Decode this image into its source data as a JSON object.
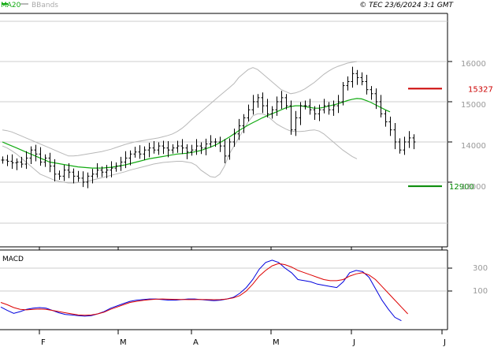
{
  "header": {
    "indicator_ma": "MA20",
    "indicator_bb": "BBands",
    "copyright": "© TEC 23/6/2024 3:1 GMT"
  },
  "macd_label": "MACD",
  "price_axis": [
    "16000",
    "15000",
    "14000",
    "13000"
  ],
  "macd_axis": [
    "300",
    "100"
  ],
  "months": [
    "F",
    "M",
    "A",
    "M",
    "J",
    "J"
  ],
  "levels": {
    "resistance": {
      "label": "15327",
      "value": 15327,
      "color": "#cc0000"
    },
    "support": {
      "label": "12900",
      "value": 12900,
      "color": "#008800"
    }
  },
  "colors": {
    "price_bar": "#000000",
    "ma20": "#11aa11",
    "bbands": "#b8b8b8",
    "macd": "#0000dd",
    "signal": "#dd0000",
    "grid": "#cccccc",
    "frame": "#000000"
  },
  "chart_data": [
    {
      "type": "ohlc",
      "x_ticks": [
        "F",
        "M",
        "A",
        "M",
        "J",
        "J"
      ],
      "ylim": [
        12000,
        16600
      ],
      "y_ticks": [
        13000,
        14000,
        15000,
        16000
      ],
      "grid": true,
      "closes": [
        13550,
        13520,
        13480,
        13500,
        13450,
        13600,
        13800,
        13700,
        13500,
        13600,
        13400,
        13200,
        13150,
        13300,
        13250,
        13150,
        13100,
        13000,
        13150,
        13200,
        13300,
        13250,
        13300,
        13350,
        13400,
        13500,
        13600,
        13700,
        13750,
        13700,
        13800,
        13850,
        13800,
        13900,
        13850,
        13800,
        13850,
        13900,
        13850,
        13750,
        13800,
        13900,
        13850,
        13950,
        14000,
        14000,
        13900,
        13650,
        14000,
        14200,
        14400,
        14600,
        14800,
        15000,
        15100,
        14900,
        14700,
        14800,
        15000,
        15100,
        14900,
        14300,
        14600,
        14900,
        14900,
        14800,
        14700,
        14800,
        14900,
        14800,
        14900,
        15000,
        15400,
        15500,
        15700,
        15600,
        15500,
        15300,
        15200,
        15000,
        14700,
        14500,
        14300,
        14000,
        13800,
        14000,
        14100,
        14000
      ],
      "series": [
        {
          "name": "MA20",
          "values": [
            14000,
            13950,
            13900,
            13850,
            13800,
            13750,
            13700,
            13650,
            13600,
            13550,
            13500,
            13480,
            13460,
            13440,
            13420,
            13400,
            13380,
            13370,
            13360,
            13350,
            13350,
            13350,
            13360,
            13370,
            13390,
            13410,
            13430,
            13460,
            13490,
            13520,
            13550,
            13580,
            13600,
            13620,
            13640,
            13660,
            13680,
            13700,
            13710,
            13720,
            13740,
            13760,
            13790,
            13830,
            13870,
            13920,
            13980,
            14050,
            14120,
            14200,
            14280,
            14350,
            14420,
            14480,
            14540,
            14600,
            14650,
            14700,
            14750,
            14800,
            14850,
            14880,
            14900,
            14900,
            14880,
            14860,
            14840,
            14840,
            14860,
            14890,
            14920,
            14950,
            14990,
            15030,
            15060,
            15080,
            15070,
            15030,
            14980,
            14920,
            14860,
            14800,
            14750
          ]
        },
        {
          "name": "BBands",
          "values": [
            14300,
            14280,
            14250,
            14200,
            14150,
            14100,
            14050,
            14000,
            13950,
            13900,
            13850,
            13800,
            13750,
            13700,
            13650,
            13650,
            13660,
            13680,
            13700,
            13720,
            13740,
            13760,
            13790,
            13820,
            13860,
            13900,
            13940,
            13970,
            14000,
            14020,
            14040,
            14060,
            14080,
            14100,
            14130,
            14160,
            14200,
            14260,
            14340,
            14440,
            14550,
            14650,
            14750,
            14850,
            14950,
            15050,
            15150,
            15250,
            15350,
            15450,
            15600,
            15700,
            15800,
            15850,
            15800,
            15700,
            15600,
            15500,
            15400,
            15300,
            15250,
            15200,
            15220,
            15260,
            15320,
            15400,
            15480,
            15580,
            15680,
            15760,
            15830,
            15880,
            15920,
            15960,
            15980,
            16000
          ]
        },
        {
          "name": "BBands",
          "values": [
            13900,
            13850,
            13780,
            13700,
            13600,
            13500,
            13400,
            13300,
            13200,
            13150,
            13100,
            13050,
            13020,
            13000,
            12980,
            12980,
            12990,
            13000,
            13020,
            13050,
            13080,
            13110,
            13140,
            13170,
            13200,
            13230,
            13260,
            13300,
            13330,
            13360,
            13390,
            13420,
            13450,
            13470,
            13490,
            13500,
            13510,
            13520,
            13520,
            13500,
            13480,
            13420,
            13300,
            13220,
            13140,
            13120,
            13200,
            13400,
            13700,
            13900,
            14100,
            14300,
            14500,
            14650,
            14700,
            14700,
            14650,
            14550,
            14450,
            14380,
            14320,
            14270,
            14260,
            14260,
            14270,
            14290,
            14300,
            14270,
            14200,
            14100,
            14000,
            13900,
            13800,
            13720,
            13640,
            13580
          ]
        }
      ]
    },
    {
      "type": "line",
      "x_ticks": [
        "F",
        "M",
        "A",
        "M",
        "J",
        "J"
      ],
      "y_ticks": [
        100,
        300
      ],
      "ylim": [
        -190,
        420
      ],
      "series": [
        {
          "name": "MACD",
          "values": [
            -40,
            -70,
            -95,
            -80,
            -60,
            -50,
            -45,
            -50,
            -70,
            -90,
            -105,
            -110,
            -115,
            -120,
            -115,
            -100,
            -80,
            -50,
            -30,
            -10,
            10,
            20,
            25,
            30,
            30,
            25,
            20,
            20,
            25,
            30,
            30,
            25,
            20,
            15,
            20,
            30,
            45,
            80,
            130,
            200,
            290,
            350,
            370,
            350,
            300,
            260,
            200,
            190,
            180,
            160,
            150,
            140,
            130,
            180,
            260,
            280,
            270,
            220,
            120,
            20,
            -60,
            -130,
            -160
          ]
        },
        {
          "name": "Signal",
          "values": [
            0,
            -20,
            -45,
            -60,
            -65,
            -60,
            -58,
            -60,
            -70,
            -80,
            -90,
            -100,
            -110,
            -112,
            -110,
            -100,
            -85,
            -60,
            -40,
            -20,
            0,
            10,
            18,
            24,
            28,
            30,
            28,
            27,
            26,
            25,
            25,
            26,
            25,
            24,
            25,
            30,
            40,
            60,
            100,
            160,
            230,
            280,
            320,
            340,
            330,
            310,
            280,
            260,
            240,
            220,
            200,
            190,
            190,
            200,
            230,
            250,
            260,
            240,
            200,
            140,
            80,
            20,
            -40,
            -100
          ]
        }
      ]
    }
  ]
}
